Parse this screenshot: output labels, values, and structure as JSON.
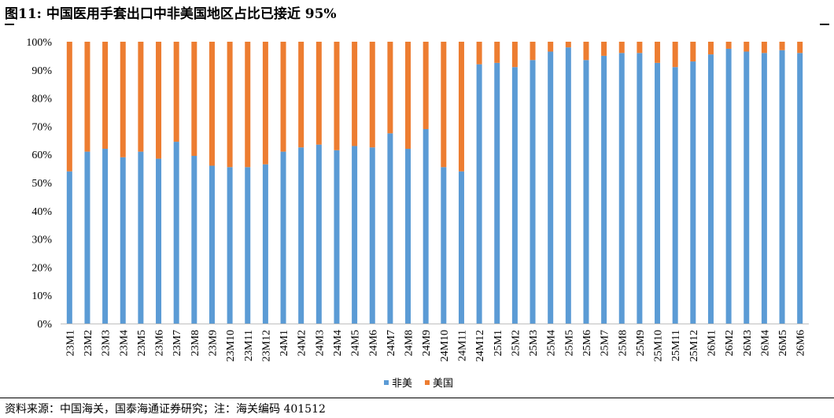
{
  "title": "图11:  中国医用手套出口中非美国地区占比已接近 95%",
  "source": "资料来源：中国海关，国泰海通证券研究；注：海关编码 401512",
  "chart_data": {
    "type": "bar",
    "stacked": true,
    "categories": [
      "23M1",
      "23M2",
      "23M3",
      "23M4",
      "23M5",
      "23M6",
      "23M7",
      "23M8",
      "23M9",
      "23M10",
      "23M11",
      "23M12",
      "24M1",
      "24M2",
      "24M3",
      "24M4",
      "24M5",
      "24M6",
      "24M7",
      "24M8",
      "24M9",
      "24M10",
      "24M11",
      "24M12",
      "25M1",
      "25M2",
      "25M3",
      "25M4",
      "25M5",
      "25M6",
      "25M7",
      "25M8",
      "25M9",
      "25M10",
      "25M11",
      "25M12",
      "26M1",
      "26M2",
      "26M3",
      "26M4",
      "26M5",
      "26M6"
    ],
    "series": [
      {
        "name": "非美",
        "color": "#5B9BD5",
        "values": [
          54,
          61,
          62,
          59,
          61,
          58.5,
          64.5,
          59.5,
          56,
          55.5,
          55.5,
          56.5,
          61,
          62.5,
          63.5,
          61.5,
          63,
          62.5,
          67.5,
          62,
          69,
          55.5,
          54,
          92,
          92.5,
          91,
          93.5,
          96.5,
          98,
          93.5,
          95,
          96,
          96,
          92.5,
          91,
          93,
          95.5,
          97.5,
          96.5,
          96,
          97,
          96
        ]
      },
      {
        "name": "美国",
        "color": "#ED7D31",
        "values": [
          46,
          39,
          38,
          41,
          39,
          41.5,
          35.5,
          40.5,
          44,
          44.5,
          44.5,
          43.5,
          39,
          37.5,
          36.5,
          38.5,
          37,
          37.5,
          32.5,
          38,
          31,
          44.5,
          46,
          8,
          7.5,
          9,
          6.5,
          3.5,
          2,
          6.5,
          5,
          4,
          4,
          7.5,
          9,
          7,
          4.5,
          2.5,
          3.5,
          4,
          3,
          4
        ]
      }
    ],
    "ylim": [
      0,
      100
    ],
    "yticks": [
      "0%",
      "10%",
      "20%",
      "30%",
      "40%",
      "50%",
      "60%",
      "70%",
      "80%",
      "90%",
      "100%"
    ],
    "grid": false,
    "legend": "bottom-center"
  }
}
